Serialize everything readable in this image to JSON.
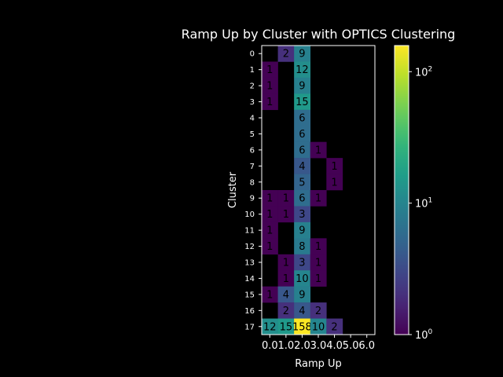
{
  "chart_data": {
    "type": "heatmap",
    "title": "Ramp Up by Cluster with OPTICS Clustering",
    "xlabel": "Ramp Up",
    "ylabel": "Cluster",
    "x_categories": [
      "0.0",
      "1.0",
      "2.0",
      "3.0",
      "4.0",
      "5.0",
      "6.0"
    ],
    "y_categories": [
      "0",
      "1",
      "2",
      "3",
      "4",
      "5",
      "6",
      "7",
      "8",
      "9",
      "10",
      "11",
      "12",
      "13",
      "14",
      "15",
      "16",
      "17"
    ],
    "values": [
      [
        0,
        2,
        9,
        0,
        0,
        0,
        0
      ],
      [
        1,
        0,
        12,
        0,
        0,
        0,
        0
      ],
      [
        1,
        0,
        9,
        0,
        0,
        0,
        0
      ],
      [
        1,
        0,
        15,
        0,
        0,
        0,
        0
      ],
      [
        0,
        0,
        6,
        0,
        0,
        0,
        0
      ],
      [
        0,
        0,
        6,
        0,
        0,
        0,
        0
      ],
      [
        0,
        0,
        6,
        1,
        0,
        0,
        0
      ],
      [
        0,
        0,
        4,
        0,
        1,
        0,
        0
      ],
      [
        0,
        0,
        5,
        0,
        1,
        0,
        0
      ],
      [
        1,
        1,
        6,
        1,
        0,
        0,
        0
      ],
      [
        1,
        1,
        3,
        0,
        0,
        0,
        0
      ],
      [
        1,
        0,
        9,
        0,
        0,
        0,
        0
      ],
      [
        1,
        0,
        8,
        1,
        0,
        0,
        0
      ],
      [
        0,
        1,
        3,
        1,
        0,
        0,
        0
      ],
      [
        0,
        1,
        10,
        1,
        0,
        0,
        0
      ],
      [
        1,
        4,
        9,
        0,
        0,
        0,
        0
      ],
      [
        0,
        2,
        4,
        2,
        0,
        0,
        0
      ],
      [
        12,
        15,
        158,
        10,
        2,
        0,
        0
      ]
    ],
    "zero_cells": "blank",
    "color_scale": "log",
    "colormap": "viridis",
    "colorbar": {
      "min": 1,
      "max": 158,
      "ticks": [
        1,
        10,
        100
      ],
      "tick_labels": [
        "10^0",
        "10^1",
        "10^2"
      ]
    },
    "background": "#000000",
    "text_color": "#ffffff",
    "cell_text_color": "#000000"
  }
}
